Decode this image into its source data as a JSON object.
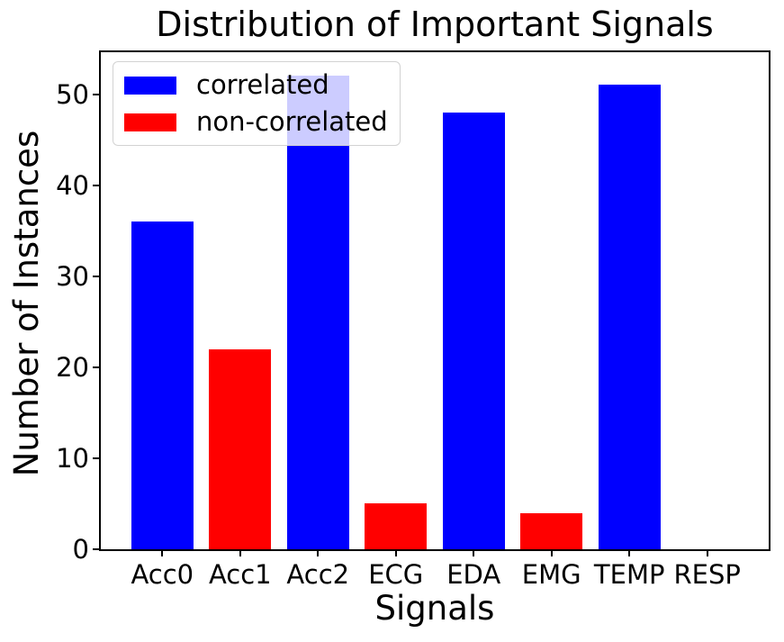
{
  "chart_data": {
    "type": "bar",
    "title": "Distribution of Important Signals",
    "xlabel": "Signals",
    "ylabel": "Number of Instances",
    "categories": [
      "Acc0",
      "Acc1",
      "Acc2",
      "ECG",
      "EDA",
      "EMG",
      "TEMP",
      "RESP"
    ],
    "values": [
      36,
      22,
      52,
      5,
      48,
      4,
      51,
      0
    ],
    "bar_groups": [
      "correlated",
      "non-correlated",
      "correlated",
      "non-correlated",
      "correlated",
      "non-correlated",
      "correlated",
      "correlated"
    ],
    "group_colors": {
      "correlated": "#0000ff",
      "non-correlated": "#ff0000"
    },
    "legend": {
      "position": "upper-left",
      "entries": [
        {
          "label": "correlated",
          "color": "#0000ff"
        },
        {
          "label": "non-correlated",
          "color": "#ff0000"
        }
      ]
    },
    "ylim": [
      0,
      54.6
    ],
    "yticks": [
      0,
      10,
      20,
      30,
      40,
      50
    ],
    "grid": false,
    "bar_width_fraction": 0.8,
    "x_axis_padding_units": 0.79,
    "colors": {
      "spine": "#000000",
      "text": "#000000",
      "background": "#ffffff"
    }
  }
}
